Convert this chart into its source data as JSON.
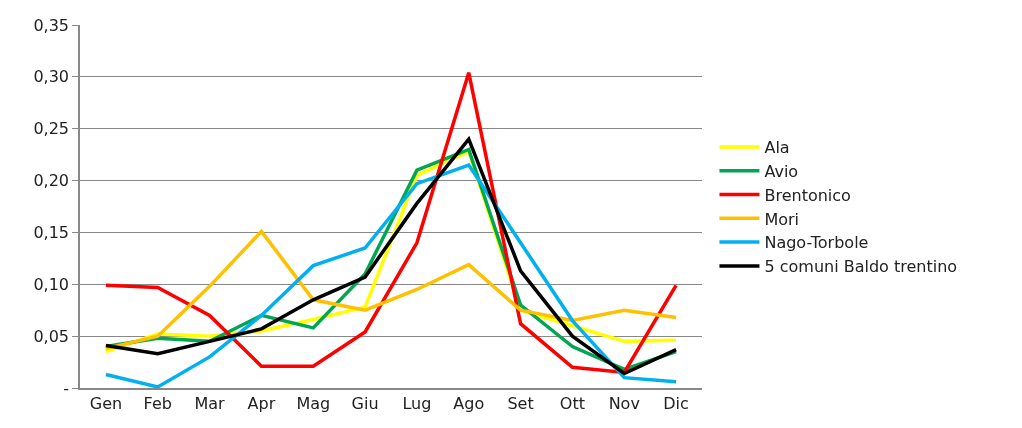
{
  "chart_data": {
    "type": "line",
    "categories": [
      "Gen",
      "Feb",
      "Mar",
      "Apr",
      "Mag",
      "Giu",
      "Lug",
      "Ago",
      "Set",
      "Ott",
      "Nov",
      "Dic"
    ],
    "series": [
      {
        "name": "Ala",
        "color": "#ffff00",
        "values": [
          0.035,
          0.052,
          0.05,
          0.055,
          0.066,
          0.078,
          0.205,
          0.228,
          0.075,
          0.06,
          0.045,
          0.046
        ]
      },
      {
        "name": "Avio",
        "color": "#00a651",
        "values": [
          0.04,
          0.048,
          0.045,
          0.07,
          0.058,
          0.11,
          0.21,
          0.23,
          0.08,
          0.04,
          0.018,
          0.035
        ]
      },
      {
        "name": "Brentonico",
        "color": "#ff0000",
        "values": [
          0.099,
          0.097,
          0.07,
          0.021,
          0.021,
          0.054,
          0.14,
          0.304,
          0.062,
          0.02,
          0.015,
          0.099
        ]
      },
      {
        "name": "Mori",
        "color": "#ffc000",
        "values": [
          0.038,
          0.05,
          0.098,
          0.151,
          0.085,
          0.075,
          0.095,
          0.119,
          0.075,
          0.065,
          0.075,
          0.068
        ]
      },
      {
        "name": "Nago-Torbole",
        "color": "#00b0f0",
        "values": [
          0.013,
          0.001,
          0.03,
          0.07,
          0.118,
          0.135,
          0.197,
          0.215,
          0.14,
          0.065,
          0.01,
          0.006
        ]
      },
      {
        "name": "5 comuni Baldo trentino",
        "color": "#000000",
        "values": [
          0.041,
          0.033,
          0.045,
          0.057,
          0.085,
          0.107,
          0.178,
          0.24,
          0.113,
          0.05,
          0.014,
          0.037
        ]
      }
    ],
    "ylim": [
      0,
      0.35
    ],
    "yticks": [
      {
        "value": 0,
        "label": "-"
      },
      {
        "value": 0.05,
        "label": "0,05"
      },
      {
        "value": 0.1,
        "label": "0,10"
      },
      {
        "value": 0.15,
        "label": "0,15"
      },
      {
        "value": 0.2,
        "label": "0,20"
      },
      {
        "value": 0.25,
        "label": "0,25"
      },
      {
        "value": 0.3,
        "label": "0,30"
      },
      {
        "value": 0.35,
        "label": "0,35"
      }
    ],
    "grid": "y",
    "legend": "right",
    "marker": "none",
    "line_style": "solid"
  }
}
